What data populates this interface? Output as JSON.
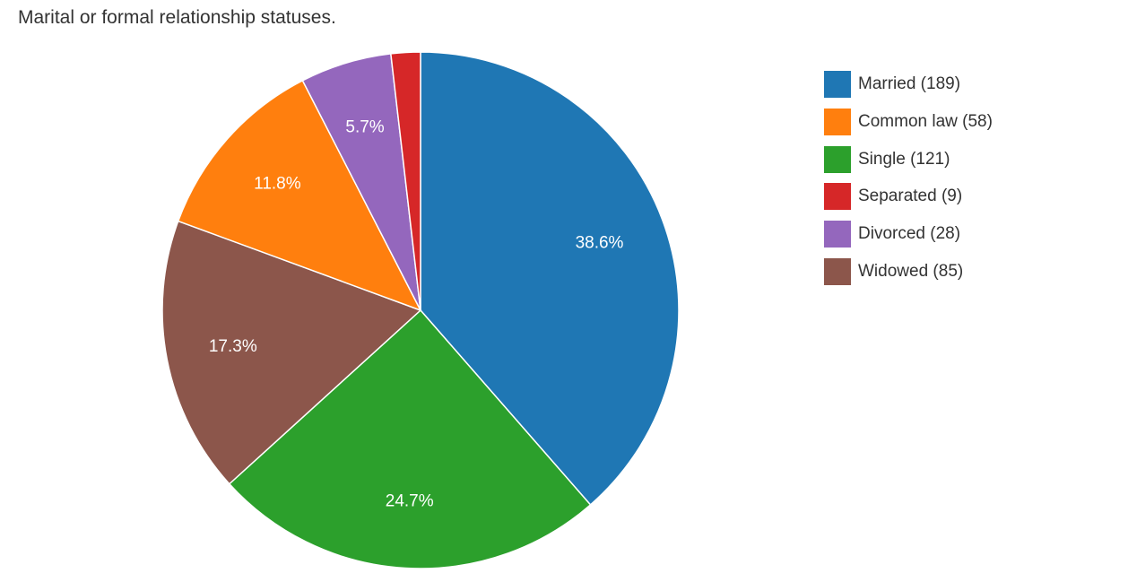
{
  "chart_data": {
    "type": "pie",
    "title": "Marital or formal relationship statuses.",
    "legend_position": "right",
    "slices": [
      {
        "name": "Married",
        "value": 189,
        "legend_label": "Married (189)",
        "percent_label": "38.6%",
        "color": "#1f77b4"
      },
      {
        "name": "Single",
        "value": 121,
        "legend_label": "Single (121)",
        "percent_label": "24.7%",
        "color": "#2ca02c"
      },
      {
        "name": "Widowed",
        "value": 85,
        "legend_label": "Widowed (85)",
        "percent_label": "17.3%",
        "color": "#8c564b"
      },
      {
        "name": "Common law",
        "value": 58,
        "legend_label": "Common law (58)",
        "percent_label": "11.8%",
        "color": "#ff7f0e"
      },
      {
        "name": "Divorced",
        "value": 28,
        "legend_label": "Divorced (28)",
        "percent_label": "5.7%",
        "color": "#9467bd"
      },
      {
        "name": "Separated",
        "value": 9,
        "legend_label": "Separated (9)",
        "percent_label": "",
        "color": "#d62728"
      }
    ],
    "legend_order": [
      "Married",
      "Common law",
      "Single",
      "Separated",
      "Divorced",
      "Widowed"
    ]
  }
}
